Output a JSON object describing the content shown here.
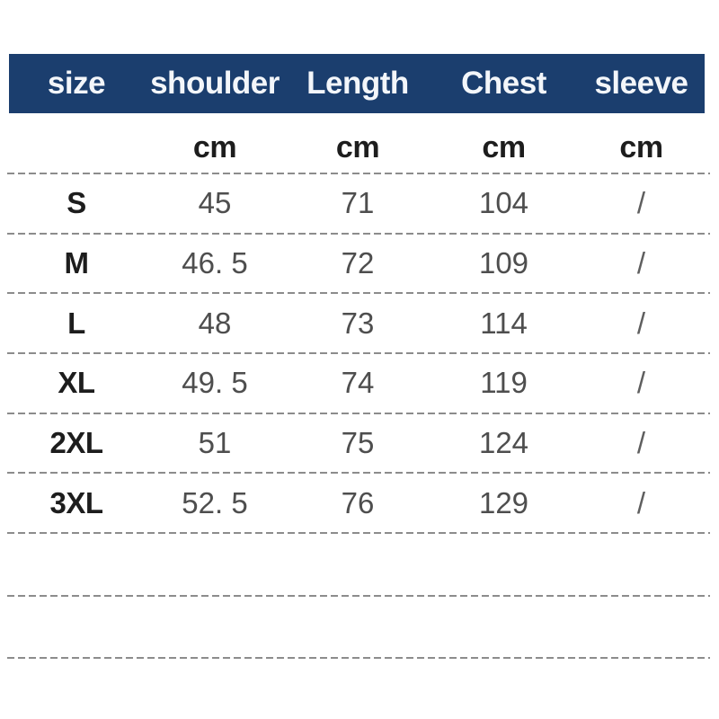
{
  "theme": {
    "page_bg": "#ffffff",
    "header_bg": "#1b3e6e",
    "header_text": "#f3f6fa",
    "dash_color": "#8c8c8c",
    "label_color": "#1d1d1d",
    "value_color": "#4e4e4e"
  },
  "chart_data": {
    "type": "table",
    "title": "",
    "columns": [
      "size",
      "shoulder",
      "Length",
      "Chest",
      "sleeve"
    ],
    "units": [
      "",
      "cm",
      "cm",
      "cm",
      "cm"
    ],
    "rows": [
      [
        "S",
        "45",
        "71",
        "104",
        "/"
      ],
      [
        "M",
        "46. 5",
        "72",
        "109",
        "/"
      ],
      [
        "L",
        "48",
        "73",
        "114",
        "/"
      ],
      [
        "XL",
        "49. 5",
        "74",
        "119",
        "/"
      ],
      [
        "2XL",
        "51",
        "75",
        "124",
        "/"
      ],
      [
        "3XL",
        "52. 5",
        "76",
        "129",
        "/"
      ]
    ],
    "layout": {
      "trailing_empty_rows": 2,
      "separator_style": "dashed",
      "header_position": "top"
    }
  }
}
